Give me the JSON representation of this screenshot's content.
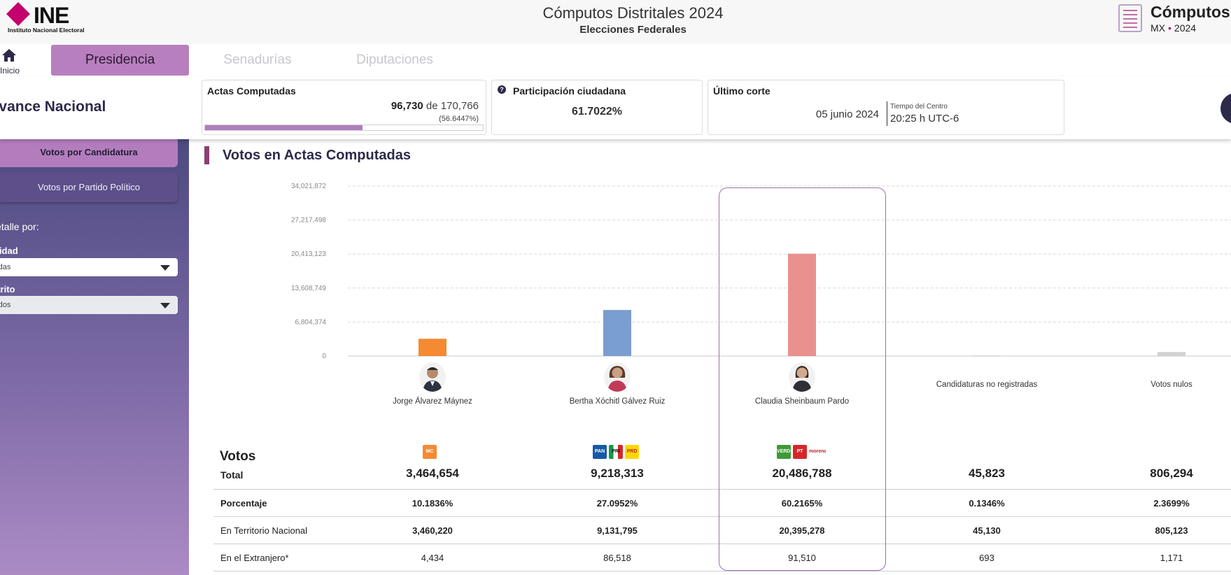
{
  "header": {
    "logo_word": "INE",
    "logo_sub": "Instituto Nacional Electoral",
    "title": "Cómputos Distritales 2024",
    "subtitle": "Elecciones Federales",
    "brand_title": "Cómputos",
    "brand_mx": "MX",
    "brand_year": "2024"
  },
  "nav": {
    "home_label": "Inicio",
    "tabs": [
      "Presidencia",
      "Senadurías",
      "Diputaciones"
    ]
  },
  "info": {
    "ambito": "Avance Nacional",
    "actas": {
      "title": "Actas Computadas",
      "computed": "96,730",
      "connector": "de",
      "total": "170,766",
      "percent_text": "(56.6447%)",
      "progress_fraction": 0.566447
    },
    "participacion": {
      "title": "Participación ciudadana",
      "icon_glyph": "?",
      "value": "61.7022%"
    },
    "corte": {
      "title": "Último corte",
      "date": "05 junio 2024",
      "tz_label": "Tiempo del Centro",
      "time": "20:25 h UTC-6"
    }
  },
  "sidebar": {
    "buttons": [
      "Votos por Candidatura",
      "Votos por Partido Político"
    ],
    "detalle_label": "Detalle por:",
    "entidad_label": "Entidad",
    "entidad_value": "Todas",
    "distrito_label": "Distrito",
    "distrito_value": "Todos"
  },
  "section_title": "Votos en Actas Computadas",
  "colors": {
    "accent": "#b87fbe",
    "sidebar_top": "#4d4a80",
    "dark": "#2d2a4a"
  },
  "chart_data": {
    "type": "bar",
    "title": "Votos en Actas Computadas",
    "categories": [
      "Jorge Álvarez Máynez",
      "Bertha Xóchitl Gálvez Ruiz",
      "Claudia Sheinbaum Pardo",
      "Candidaturas no registradas",
      "Votos nulos"
    ],
    "values": [
      3464654,
      9218313,
      20486788,
      45823,
      806294
    ],
    "colors": [
      "#f58a33",
      "#7a9ecf",
      "#e8918f",
      "#d7d7d7",
      "#d2d2d2"
    ],
    "yticks": [
      0,
      6804374,
      13608749,
      20413123,
      27217498,
      34021872
    ],
    "ytick_labels": [
      "0",
      "6,804,374",
      "13,608,749",
      "20,413,123",
      "27,217,498",
      "34,021,872"
    ],
    "ylim": [
      0,
      34021872
    ],
    "highlighted": "Claudia Sheinbaum Pardo"
  },
  "table": {
    "heading": "Votos",
    "total_label": "Total",
    "rows": [
      {
        "label": "Porcentaje",
        "values": [
          "10.1836%",
          "27.0952%",
          "60.2165%",
          "0.1346%",
          "2.3699%"
        ]
      },
      {
        "label": "En Territorio Nacional",
        "values": [
          "3,460,220",
          "9,131,795",
          "20,395,278",
          "45,130",
          "805,123"
        ]
      },
      {
        "label": "En el Extranjero*",
        "values": [
          "4,434",
          "86,518",
          "91,510",
          "693",
          "1,171"
        ]
      }
    ],
    "totals": [
      "3,464,654",
      "9,218,313",
      "20,486,788",
      "45,823",
      "806,294"
    ]
  },
  "party_logos": {
    "c0": [
      {
        "name": "MC",
        "color": "#f58a33"
      }
    ],
    "c1": [
      {
        "name": "PAN",
        "color": "#1559a8"
      },
      {
        "name": "PRI",
        "color": "#159947"
      },
      {
        "name": "PRD",
        "color": "#ffd700"
      }
    ],
    "c2": [
      {
        "name": "VERDE",
        "color": "#3d9b35"
      },
      {
        "name": "PT",
        "color": "#d7262b"
      },
      {
        "name": "morena",
        "color": "#ffffff"
      }
    ]
  }
}
